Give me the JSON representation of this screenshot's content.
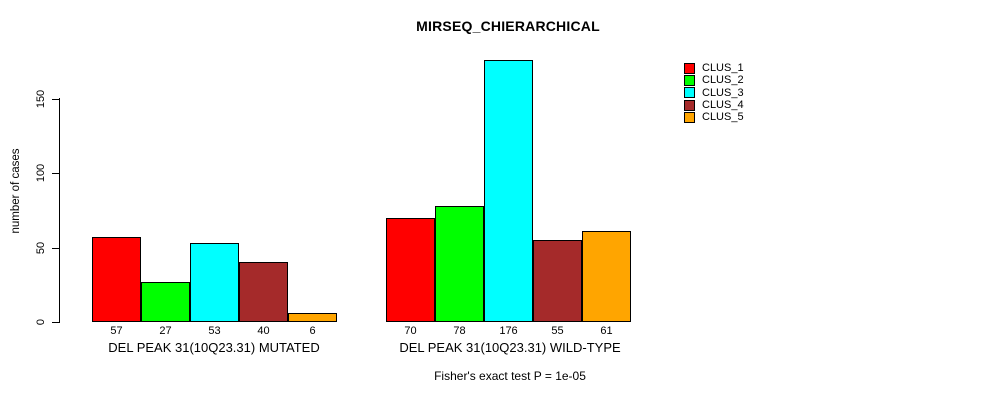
{
  "title": "MIRSEQ_CHIERARCHICAL",
  "ylabel": "number of cases",
  "footer": "Fisher's exact test P = 1e-05",
  "legend": {
    "items": [
      {
        "label": "CLUS_1",
        "color": "#FF0000"
      },
      {
        "label": "CLUS_2",
        "color": "#00FF00"
      },
      {
        "label": "CLUS_3",
        "color": "#00FFFF"
      },
      {
        "label": "CLUS_4",
        "color": "#A52A2A"
      },
      {
        "label": "CLUS_5",
        "color": "#FFA500"
      }
    ]
  },
  "chart_data": {
    "type": "bar",
    "title": "MIRSEQ_CHIERARCHICAL",
    "ylabel": "number of cases",
    "xlabel": "",
    "ylim": [
      0,
      176
    ],
    "yticks": [
      0,
      50,
      100,
      150
    ],
    "grid": false,
    "legend_position": "top-right",
    "series_names": [
      "CLUS_1",
      "CLUS_2",
      "CLUS_3",
      "CLUS_4",
      "CLUS_5"
    ],
    "colors": [
      "#FF0000",
      "#00FF00",
      "#00FFFF",
      "#A52A2A",
      "#FFA500"
    ],
    "groups": [
      {
        "label": "DEL PEAK 31(10Q23.31) MUTATED",
        "values": [
          57,
          27,
          53,
          40,
          6
        ]
      },
      {
        "label": "DEL PEAK 31(10Q23.31) WILD-TYPE",
        "values": [
          70,
          78,
          176,
          55,
          61
        ]
      }
    ],
    "annotation": "Fisher's exact test P = 1e-05"
  }
}
